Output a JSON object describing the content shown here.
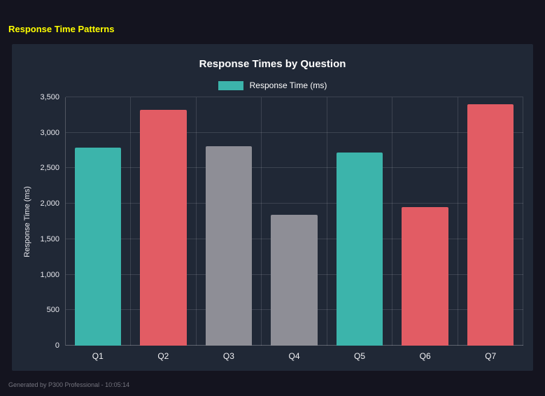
{
  "header": {
    "title": "Response Time Patterns"
  },
  "footer": {
    "note": "Generated by P300 Professional - 10:05:14"
  },
  "colors": {
    "teal": "#3cb4ab",
    "red": "#e25c64",
    "gray": "#8e8e96",
    "heading_yellow": "#ffff00",
    "panel_background": "#202836",
    "page_background": "#14141f"
  },
  "chart_data": {
    "type": "bar",
    "title": "Response Times by Question",
    "legend": "Response Time (ms)",
    "legend_color": "#3cb4ab",
    "legend_position": "top",
    "xlabel": "",
    "ylabel": "Response Time (ms)",
    "categories": [
      "Q1",
      "Q2",
      "Q3",
      "Q4",
      "Q5",
      "Q6",
      "Q7"
    ],
    "values": [
      2790,
      3320,
      2810,
      1840,
      2720,
      1950,
      3400
    ],
    "bar_colors": [
      "#3cb4ab",
      "#e25c64",
      "#8e8e96",
      "#8e8e96",
      "#3cb4ab",
      "#e25c64",
      "#e25c64"
    ],
    "ylim": [
      0,
      3500
    ],
    "ytick_step": 500,
    "ytick_labels": [
      "0",
      "500",
      "1,000",
      "1,500",
      "2,000",
      "2,500",
      "3,000",
      "3,500"
    ],
    "grid": true
  }
}
